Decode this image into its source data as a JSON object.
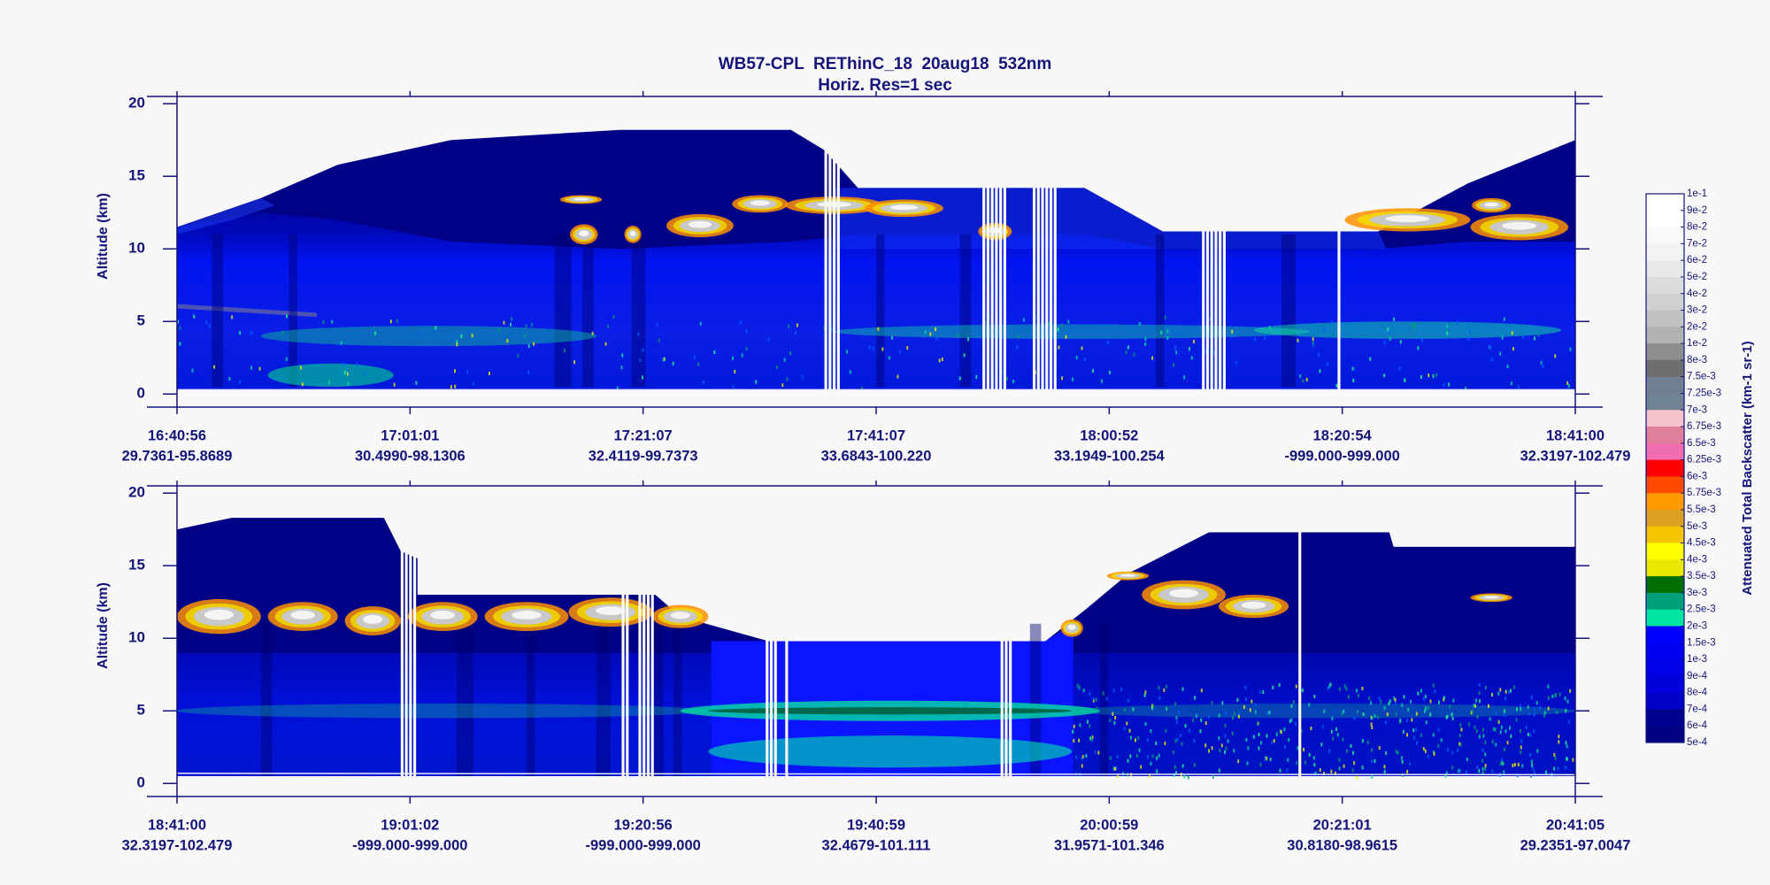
{
  "title": "WB57-CPL  REThinC_18  20aug18  532nm",
  "subtitle": "Horiz. Res=1 sec",
  "chart_data": [
    {
      "type": "curtain",
      "ylabel": "Altitude (km)",
      "ylim": [
        -0.9,
        20.5
      ],
      "yticks": [
        0,
        5,
        10,
        15,
        20
      ],
      "categories": [
        "16:40:56",
        "17:01:01",
        "17:21:07",
        "17:41:07",
        "18:00:52",
        "18:20:54",
        "18:41:00"
      ],
      "locations": [
        "29.7361-95.8689",
        "30.4990-98.1306",
        "32.4119-99.7373",
        "33.6843-100.220",
        "33.1949-100.254",
        "-999.000-999.000",
        "32.3197-102.479"
      ]
    },
    {
      "type": "curtain",
      "ylabel": "Altitude (km)",
      "ylim": [
        -0.9,
        20.5
      ],
      "yticks": [
        0,
        5,
        10,
        15,
        20
      ],
      "categories": [
        "18:41:00",
        "19:01:02",
        "19:20:56",
        "19:40:59",
        "20:00:59",
        "20:21:01",
        "20:41:05"
      ],
      "locations": [
        "32.3197-102.479",
        "-999.000-999.000",
        "-999.000-999.000",
        "32.4679-101.111",
        "31.9571-101.346",
        "30.8180-98.9615",
        "29.2351-97.0047"
      ]
    }
  ],
  "colorbar": {
    "label": "Attenuated Total Backscatter (km-1 sr-1)",
    "ticks": [
      {
        "value": 0.1,
        "label": "1e-1"
      },
      {
        "value": 0.09,
        "label": "9e-2"
      },
      {
        "value": 0.08,
        "label": "8e-2"
      },
      {
        "value": 0.07,
        "label": "7e-2"
      },
      {
        "value": 0.06,
        "label": "6e-2"
      },
      {
        "value": 0.05,
        "label": "5e-2"
      },
      {
        "value": 0.04,
        "label": "4e-2"
      },
      {
        "value": 0.03,
        "label": "3e-2"
      },
      {
        "value": 0.02,
        "label": "2e-2"
      },
      {
        "value": 0.01,
        "label": "1e-2"
      },
      {
        "value": 0.008,
        "label": "8e-3"
      },
      {
        "value": 0.0075,
        "label": "7.5e-3"
      },
      {
        "value": 0.00725,
        "label": "7.25e-3"
      },
      {
        "value": 0.007,
        "label": "7e-3"
      },
      {
        "value": 0.00675,
        "label": "6.75e-3"
      },
      {
        "value": 0.0065,
        "label": "6.5e-3"
      },
      {
        "value": 0.00625,
        "label": "6.25e-3"
      },
      {
        "value": 0.006,
        "label": "6e-3"
      },
      {
        "value": 0.00575,
        "label": "5.75e-3"
      },
      {
        "value": 0.0055,
        "label": "5.5e-3"
      },
      {
        "value": 0.005,
        "label": "5e-3"
      },
      {
        "value": 0.0045,
        "label": "4.5e-3"
      },
      {
        "value": 0.004,
        "label": "4e-3"
      },
      {
        "value": 0.0035,
        "label": "3.5e-3"
      },
      {
        "value": 0.003,
        "label": "3e-3"
      },
      {
        "value": 0.0025,
        "label": "2.5e-3"
      },
      {
        "value": 0.002,
        "label": "2e-3"
      },
      {
        "value": 0.0015,
        "label": "1.5e-3"
      },
      {
        "value": 0.001,
        "label": "1e-3"
      },
      {
        "value": 0.0009,
        "label": "9e-4"
      },
      {
        "value": 0.0008,
        "label": "8e-4"
      },
      {
        "value": 0.0007,
        "label": "7e-4"
      },
      {
        "value": 0.0006,
        "label": "6e-4"
      },
      {
        "value": 0.0005,
        "label": "5e-4"
      }
    ],
    "colors": [
      "#ffffff",
      "#ffffff",
      "#fafafa",
      "#f2f2f2",
      "#e8e8e8",
      "#dcdcdc",
      "#d0d0d0",
      "#c2c2c2",
      "#b2b2b2",
      "#8e8e8e",
      "#6e6e6e",
      "#708090",
      "#6f8394",
      "#f5c3cc",
      "#df7f9a",
      "#f06eaf",
      "#ff0000",
      "#ff4a00",
      "#ff9a00",
      "#dca020",
      "#f5c400",
      "#ffff00",
      "#e8e800",
      "#006e00",
      "#00a07a",
      "#00e6a0",
      "#0000ff",
      "#0000f0",
      "#0000e6",
      "#0000dc",
      "#0000c8",
      "#000090",
      "#000080"
    ]
  }
}
